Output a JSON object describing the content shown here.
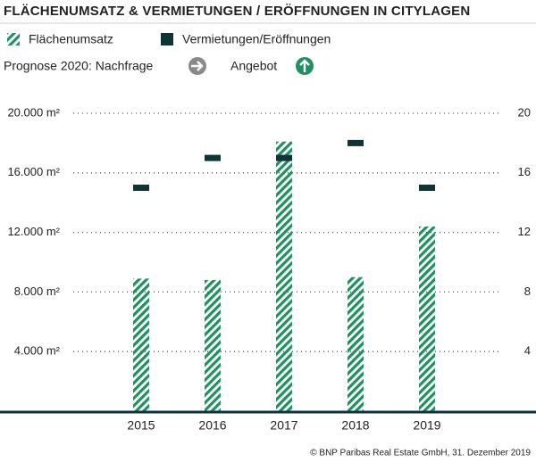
{
  "chart_data": {
    "type": "bar",
    "title": "FLÄCHENUMSATZ & VERMIETUNGEN / ERÖFFNUNGEN IN CITYLAGEN",
    "forecast_label": "Prognose 2020: Nachfrage",
    "forecast_label_2": "Angebot",
    "source": "© BNP Paribas Real Estate GmbH, 31. Dezember 2019",
    "categories": [
      "2015",
      "2016",
      "2017",
      "2018",
      "2019"
    ],
    "series": [
      {
        "name": "Flächenumsatz",
        "color": "#1e9160",
        "pattern": "hatch",
        "values": [
          8900,
          8800,
          18100,
          9000,
          12400
        ]
      },
      {
        "name": "Vermietungen/Eröffnungen",
        "color": "#0d3537",
        "axis": "y2",
        "marker": "dash",
        "values": [
          15,
          17,
          17,
          18,
          15
        ]
      }
    ],
    "ylim": [
      0,
      20000
    ],
    "yticks": [
      {
        "value": 4000,
        "label": "4.000 m²"
      },
      {
        "value": 8000,
        "label": "8.000 m²"
      },
      {
        "value": 12000,
        "label": "12.000 m²"
      },
      {
        "value": 16000,
        "label": "16.000 m²"
      },
      {
        "value": 20000,
        "label": "20.000 m²"
      }
    ],
    "y2lim": [
      0,
      20
    ],
    "y2ticks": [
      4,
      8,
      12,
      16,
      20
    ],
    "grid": true
  }
}
